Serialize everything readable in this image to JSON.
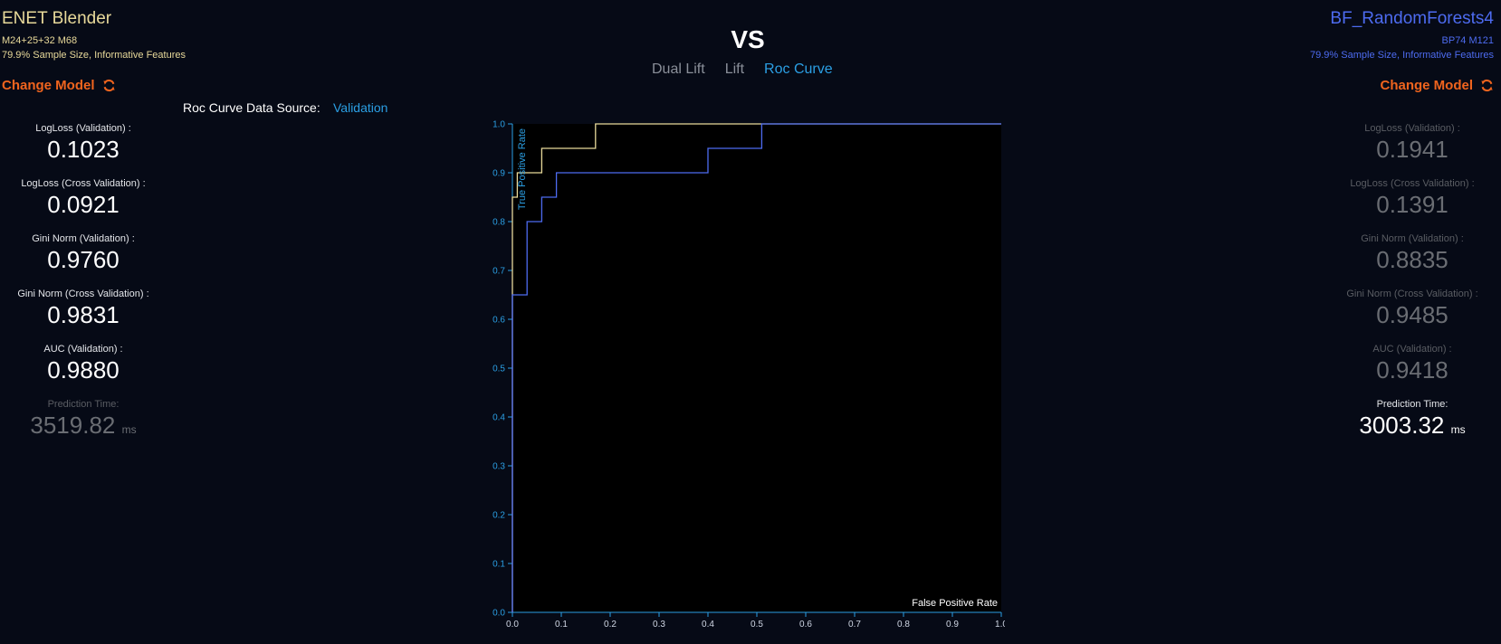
{
  "left_model": {
    "title": "ENET Blender",
    "line1": "M24+25+32 M68",
    "line2": "79.9% Sample Size, Informative Features",
    "change_label": "Change Model",
    "metrics": [
      {
        "label": "LogLoss (Validation) :",
        "value": "0.1023",
        "unit": "",
        "highlight": true
      },
      {
        "label": "LogLoss (Cross Validation) :",
        "value": "0.0921",
        "unit": "",
        "highlight": true
      },
      {
        "label": "Gini Norm (Validation) :",
        "value": "0.9760",
        "unit": "",
        "highlight": true
      },
      {
        "label": "Gini Norm (Cross Validation) :",
        "value": "0.9831",
        "unit": "",
        "highlight": true
      },
      {
        "label": "AUC (Validation) :",
        "value": "0.9880",
        "unit": "",
        "highlight": true
      },
      {
        "label": "Prediction Time:",
        "value": "3519.82",
        "unit": "ms",
        "highlight": false
      }
    ]
  },
  "right_model": {
    "title": "BF_RandomForests4",
    "line1": "BP74 M121",
    "line2": "79.9% Sample Size, Informative Features",
    "change_label": "Change Model",
    "metrics": [
      {
        "label": "LogLoss (Validation) :",
        "value": "0.1941",
        "unit": "",
        "highlight": false
      },
      {
        "label": "LogLoss (Cross Validation) :",
        "value": "0.1391",
        "unit": "",
        "highlight": false
      },
      {
        "label": "Gini Norm (Validation) :",
        "value": "0.8835",
        "unit": "",
        "highlight": false
      },
      {
        "label": "Gini Norm (Cross Validation) :",
        "value": "0.9485",
        "unit": "",
        "highlight": false
      },
      {
        "label": "AUC (Validation) :",
        "value": "0.9418",
        "unit": "",
        "highlight": false
      },
      {
        "label": "Prediction Time:",
        "value": "3003.32",
        "unit": "ms",
        "highlight": true
      }
    ]
  },
  "header": {
    "vs_label": "VS",
    "tabs": [
      {
        "label": "Dual Lift",
        "active": false
      },
      {
        "label": "Lift",
        "active": false
      },
      {
        "label": "Roc Curve",
        "active": true
      }
    ]
  },
  "data_source": {
    "label": "Roc Curve Data Source:",
    "value": "Validation"
  },
  "icons": {
    "change_model": "refresh-icon"
  },
  "colors": {
    "left_model": "#e8d99a",
    "right_model": "#4d6bf0",
    "accent": "#2b9fe4",
    "change_model": "#f0641e"
  },
  "chart_data": {
    "type": "line",
    "xlabel": "False Positive Rate",
    "ylabel": "True Positive Rate",
    "xlim": [
      0,
      1
    ],
    "ylim": [
      0,
      1
    ],
    "xticks": [
      "0.0",
      "0.1",
      "0.2",
      "0.3",
      "0.4",
      "0.5",
      "0.6",
      "0.7",
      "0.8",
      "0.9",
      "1.0"
    ],
    "yticks": [
      "0.0",
      "0.1",
      "0.2",
      "0.3",
      "0.4",
      "0.5",
      "0.6",
      "0.7",
      "0.8",
      "0.9",
      "1.0"
    ],
    "grid": false,
    "series": [
      {
        "model": "left",
        "color": "#e8d99a",
        "x": [
          0,
          0,
          0.01,
          0.01,
          0.06,
          0.06,
          0.17,
          0.17,
          1.0
        ],
        "y": [
          0,
          0.85,
          0.85,
          0.9,
          0.9,
          0.95,
          0.95,
          1.0,
          1.0
        ]
      },
      {
        "model": "right",
        "color": "#4d6bf0",
        "x": [
          0,
          0,
          0.03,
          0.03,
          0.06,
          0.06,
          0.09,
          0.09,
          0.4,
          0.4,
          0.51,
          0.51,
          1.0
        ],
        "y": [
          0,
          0.65,
          0.65,
          0.8,
          0.8,
          0.85,
          0.85,
          0.9,
          0.9,
          0.95,
          0.95,
          1.0,
          1.0
        ]
      }
    ]
  }
}
